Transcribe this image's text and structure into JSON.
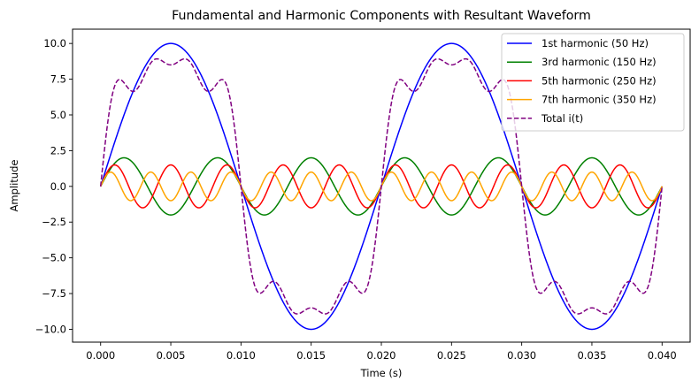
{
  "chart_data": {
    "type": "line",
    "title": "Fundamental and Harmonic Components with Resultant Waveform",
    "xlabel": "Time (s)",
    "ylabel": "Amplitude",
    "xlim": [
      -0.002,
      0.042
    ],
    "ylim": [
      -10.9,
      11.0
    ],
    "xticks": [
      0.0,
      0.005,
      0.01,
      0.015,
      0.02,
      0.025,
      0.03,
      0.035,
      0.04
    ],
    "xtick_labels": [
      "0.000",
      "0.005",
      "0.010",
      "0.015",
      "0.020",
      "0.025",
      "0.030",
      "0.035",
      "0.040"
    ],
    "yticks": [
      -10.0,
      -7.5,
      -5.0,
      -2.5,
      0.0,
      2.5,
      5.0,
      7.5,
      10.0
    ],
    "ytick_labels": [
      "−10.0",
      "−7.5",
      "−5.0",
      "−2.5",
      "0.0",
      "2.5",
      "5.0",
      "7.5",
      "10.0"
    ],
    "grid": false,
    "legend_position": "upper right",
    "x_range": [
      0.0,
      0.04
    ],
    "fundamental_frequency_hz": 50,
    "series": [
      {
        "name": "1st harmonic (50 Hz)",
        "frequency_hz": 50,
        "amplitude": 10.0,
        "color": "#0000ff",
        "style": "solid"
      },
      {
        "name": "3rd harmonic (150 Hz)",
        "frequency_hz": 150,
        "amplitude": 2.0,
        "color": "#008000",
        "style": "solid"
      },
      {
        "name": "5th harmonic (250 Hz)",
        "frequency_hz": 250,
        "amplitude": 1.5,
        "color": "#ff0000",
        "style": "solid"
      },
      {
        "name": "7th harmonic (350 Hz)",
        "frequency_hz": 350,
        "amplitude": 1.0,
        "color": "#ffa500",
        "style": "solid"
      },
      {
        "name": "Total i(t)",
        "frequency_hz": null,
        "amplitude": null,
        "color": "#800080",
        "style": "dashed",
        "formula": "sum of harmonics"
      }
    ],
    "key_values": {
      "total_at_0.005": 8.5,
      "total_peak_approx": 8.9,
      "total_at_0.015": -8.5
    }
  }
}
